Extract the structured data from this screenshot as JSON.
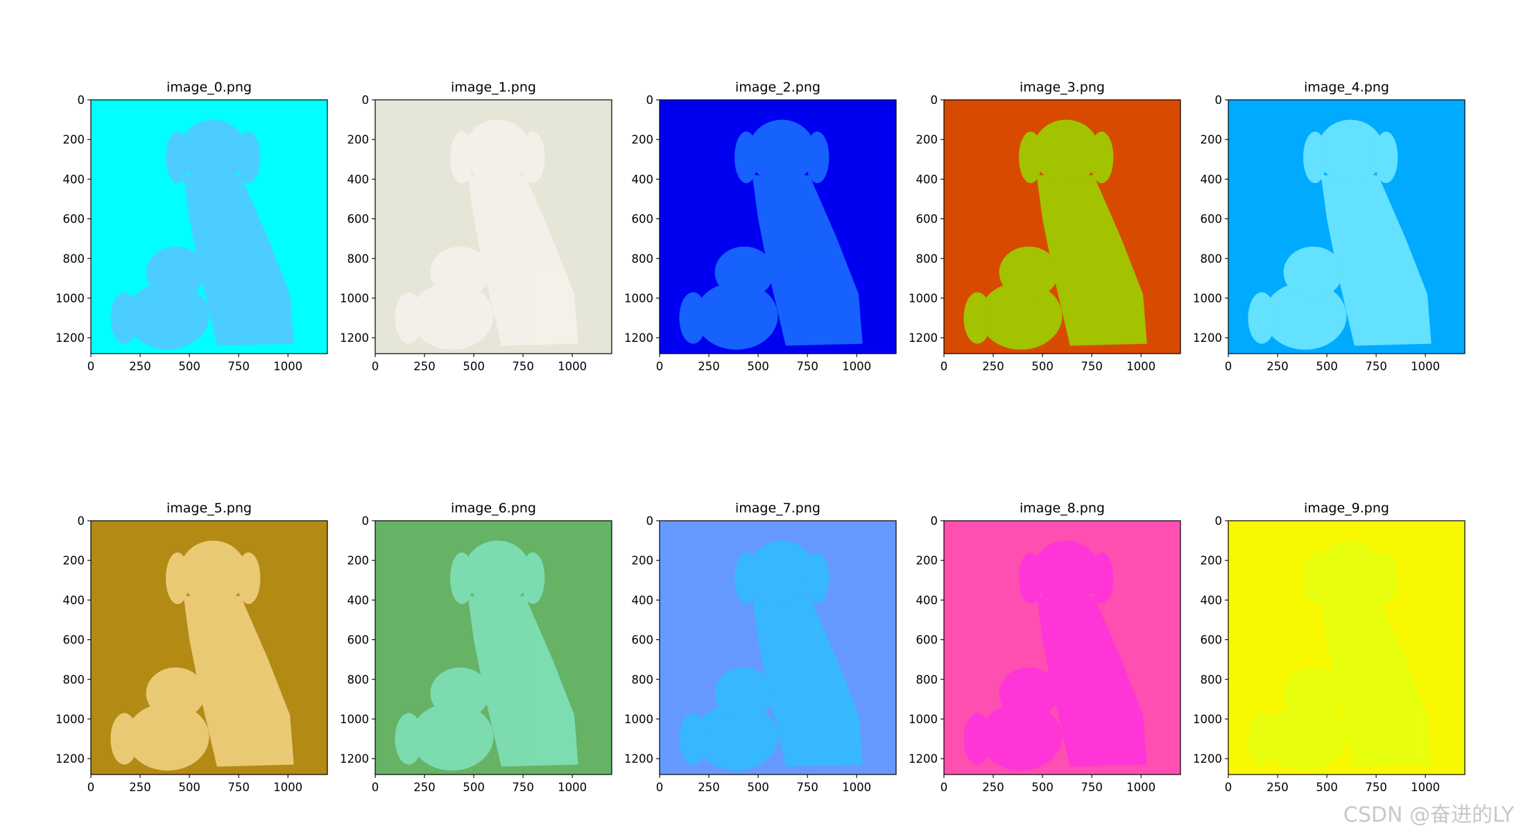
{
  "chart_data": [
    {
      "type": "image",
      "title": "image_0.png",
      "color": "#00ffff",
      "subject_color": "#55c8ff",
      "xlim": [
        0,
        1200
      ],
      "ylim": [
        1280,
        0
      ],
      "xticks": [
        0,
        250,
        500,
        750,
        1000
      ],
      "yticks": [
        0,
        200,
        400,
        600,
        800,
        1000,
        1200
      ]
    },
    {
      "type": "image",
      "title": "image_1.png",
      "color": "#e6e6d8",
      "subject_color": "#f4f2ea",
      "xlim": [
        0,
        1200
      ],
      "ylim": [
        1280,
        0
      ],
      "xticks": [
        0,
        250,
        500,
        750,
        1000
      ],
      "yticks": [
        0,
        200,
        400,
        600,
        800,
        1000,
        1200
      ]
    },
    {
      "type": "image",
      "title": "image_2.png",
      "color": "#0000f0",
      "subject_color": "#1a6cff",
      "xlim": [
        0,
        1200
      ],
      "ylim": [
        1280,
        0
      ],
      "xticks": [
        0,
        250,
        500,
        750,
        1000
      ],
      "yticks": [
        0,
        200,
        400,
        600,
        800,
        1000,
        1200
      ]
    },
    {
      "type": "image",
      "title": "image_3.png",
      "color": "#d84a00",
      "subject_color": "#9ed000",
      "xlim": [
        0,
        1200
      ],
      "ylim": [
        1280,
        0
      ],
      "xticks": [
        0,
        250,
        500,
        750,
        1000
      ],
      "yticks": [
        0,
        200,
        400,
        600,
        800,
        1000,
        1200
      ]
    },
    {
      "type": "image",
      "title": "image_4.png",
      "color": "#00aaff",
      "subject_color": "#6ee8ff",
      "xlim": [
        0,
        1200
      ],
      "ylim": [
        1280,
        0
      ],
      "xticks": [
        0,
        250,
        500,
        750,
        1000
      ],
      "yticks": [
        0,
        200,
        400,
        600,
        800,
        1000,
        1200
      ]
    },
    {
      "type": "image",
      "title": "image_5.png",
      "color": "#b38a14",
      "subject_color": "#f0d080",
      "xlim": [
        0,
        1200
      ],
      "ylim": [
        1280,
        0
      ],
      "xticks": [
        0,
        250,
        500,
        750,
        1000
      ],
      "yticks": [
        0,
        200,
        400,
        600,
        800,
        1000,
        1200
      ]
    },
    {
      "type": "image",
      "title": "image_6.png",
      "color": "#66b366",
      "subject_color": "#7fe0b8",
      "xlim": [
        0,
        1200
      ],
      "ylim": [
        1280,
        0
      ],
      "xticks": [
        0,
        250,
        500,
        750,
        1000
      ],
      "yticks": [
        0,
        200,
        400,
        600,
        800,
        1000,
        1200
      ]
    },
    {
      "type": "image",
      "title": "image_7.png",
      "color": "#6699ff",
      "subject_color": "#33bbff",
      "xlim": [
        0,
        1200
      ],
      "ylim": [
        1280,
        0
      ],
      "xticks": [
        0,
        250,
        500,
        750,
        1000
      ],
      "yticks": [
        0,
        200,
        400,
        600,
        800,
        1000,
        1200
      ]
    },
    {
      "type": "image",
      "title": "image_8.png",
      "color": "#ff4fb0",
      "subject_color": "#ff33dd",
      "xlim": [
        0,
        1200
      ],
      "ylim": [
        1280,
        0
      ],
      "xticks": [
        0,
        250,
        500,
        750,
        1000
      ],
      "yticks": [
        0,
        200,
        400,
        600,
        800,
        1000,
        1200
      ]
    },
    {
      "type": "image",
      "title": "image_9.png",
      "color": "#f8f800",
      "subject_color": "#e6ff10",
      "xlim": [
        0,
        1200
      ],
      "ylim": [
        1280,
        0
      ],
      "xticks": [
        0,
        250,
        500,
        750,
        1000
      ],
      "yticks": [
        0,
        200,
        400,
        600,
        800,
        1000,
        1200
      ]
    }
  ],
  "watermark": "CSDN @奋进的LY"
}
